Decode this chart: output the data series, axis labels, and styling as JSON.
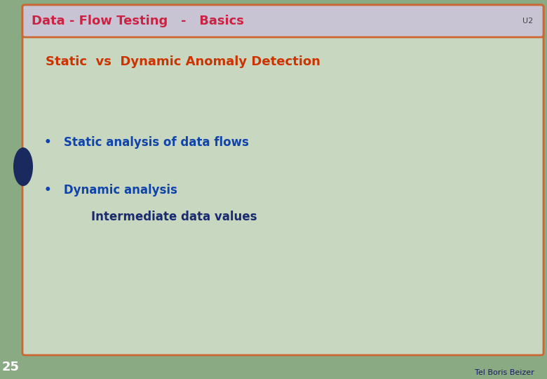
{
  "title_bar_text": "Data - Flow Testing   -   Basics",
  "title_bar_u2": "U2",
  "title_bar_bg": "#c8c4d4",
  "title_bar_border": "#cc6633",
  "title_bar_text_color": "#cc2244",
  "title_bar_u2_color": "#444444",
  "slide_bg": "#8aaa84",
  "content_bg": "#c8d8c0",
  "content_border": "#cc6633",
  "footer_number": "25",
  "footer_number_color": "#ffffff",
  "footer_text": "Tel Boris Beizer",
  "footer_text_color": "#1a1a5e",
  "subtitle_text": "Static  vs  Dynamic Anomaly Detection",
  "subtitle_color": "#cc3300",
  "bullet1": "Static analysis of data flows",
  "bullet2": "Dynamic analysis",
  "bullet2_sub": "Intermediate data values",
  "bullet_color": "#1144aa",
  "bullet_sub_color": "#1a2a6e",
  "dark_circle_color": "#1a2a5e",
  "figwidth": 7.8,
  "figheight": 5.4,
  "dpi": 100
}
